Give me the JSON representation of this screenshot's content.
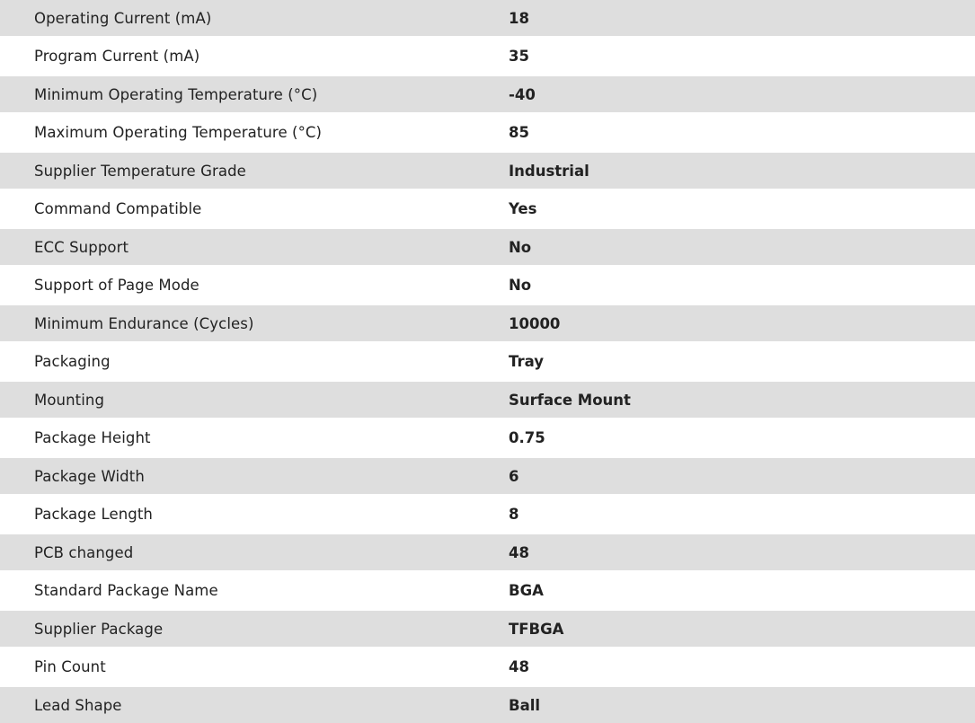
{
  "rows": [
    {
      "label": "Operating Current (mA)",
      "value": "18"
    },
    {
      "label": "Program Current (mA)",
      "value": "35"
    },
    {
      "label": "Minimum Operating Temperature (°C)",
      "value": "-40"
    },
    {
      "label": "Maximum Operating Temperature (°C)",
      "value": "85"
    },
    {
      "label": "Supplier Temperature Grade",
      "value": "Industrial"
    },
    {
      "label": "Command Compatible",
      "value": "Yes"
    },
    {
      "label": "ECC Support",
      "value": "No"
    },
    {
      "label": "Support of Page Mode",
      "value": "No"
    },
    {
      "label": "Minimum Endurance (Cycles)",
      "value": "10000"
    },
    {
      "label": "Packaging",
      "value": "Tray"
    },
    {
      "label": "Mounting",
      "value": "Surface Mount"
    },
    {
      "label": "Package Height",
      "value": "0.75"
    },
    {
      "label": "Package Width",
      "value": "6"
    },
    {
      "label": "Package Length",
      "value": "8"
    },
    {
      "label": "PCB changed",
      "value": "48"
    },
    {
      "label": "Standard Package Name",
      "value": "BGA"
    },
    {
      "label": "Supplier Package",
      "value": "TFBGA"
    },
    {
      "label": "Pin Count",
      "value": "48"
    },
    {
      "label": "Lead Shape",
      "value": "Ball"
    }
  ]
}
